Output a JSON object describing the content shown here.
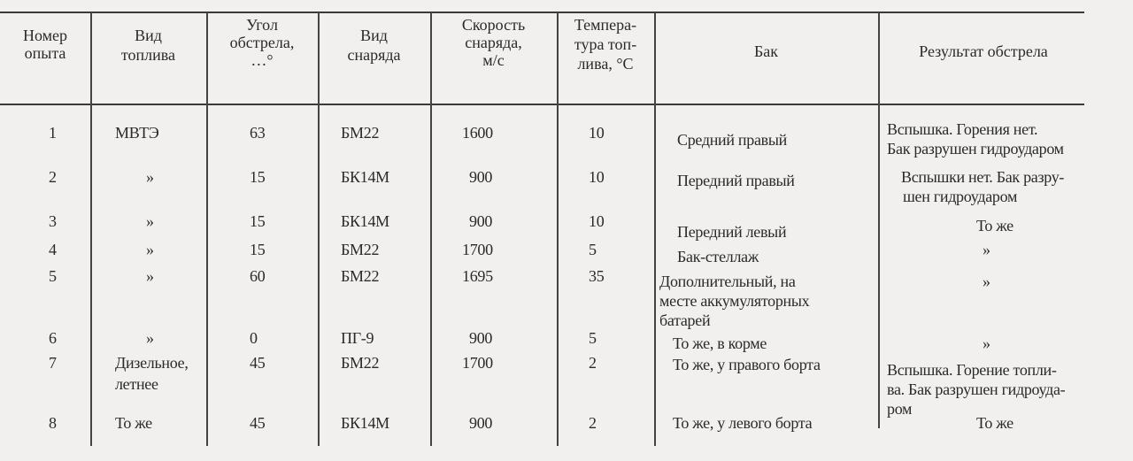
{
  "table": {
    "headers": [
      [
        "Номер",
        "опыта"
      ],
      [
        "Вид",
        "топлива"
      ],
      [
        "Угол",
        "обстрела,",
        "…°"
      ],
      [
        "Вид",
        "снаряда"
      ],
      [
        "Скорость",
        "снаряда,",
        "м/с"
      ],
      [
        "Темпера-",
        "тура топ-",
        "лива, °С"
      ],
      [
        "Бак"
      ],
      [
        "Результат  обстрела"
      ]
    ],
    "rows": [
      {
        "n": "1",
        "fuel": [
          "МВТЭ"
        ],
        "angle": "63",
        "shell": "БМ22",
        "speed": "1600",
        "temp": "10",
        "tank": [
          "Средний правый"
        ],
        "result": [
          "Вспышка.  Горения  нет.",
          "Бак разрушен гидроударом"
        ]
      },
      {
        "n": "2",
        "fuel": [
          "»"
        ],
        "angle": "15",
        "shell": "БК14М",
        "speed": "900",
        "temp": "10",
        "tank": [
          "Передний правый"
        ],
        "result": [
          "Вспышки нет. Бак разру-",
          "шен  гидроударом"
        ]
      },
      {
        "n": "3",
        "fuel": [
          "»"
        ],
        "angle": "15",
        "shell": "БК14М",
        "speed": "900",
        "temp": "10",
        "tank": [
          "Передний левый"
        ],
        "result": [
          "То же"
        ]
      },
      {
        "n": "4",
        "fuel": [
          "»"
        ],
        "angle": "15",
        "shell": "БМ22",
        "speed": "1700",
        "temp": "5",
        "tank": [
          "Бак-стеллаж"
        ],
        "result": [
          "»"
        ]
      },
      {
        "n": "5",
        "fuel": [
          "»"
        ],
        "angle": "60",
        "shell": "БМ22",
        "speed": "1695",
        "temp": "35",
        "tank": [
          "Дополнительный,        на",
          "месте    аккумуляторных",
          "батарей"
        ],
        "result": [
          "»"
        ]
      },
      {
        "n": "6",
        "fuel": [
          "»"
        ],
        "angle": "0",
        "shell": "ПГ-9",
        "speed": "900",
        "temp": "5",
        "tank": [
          "То же,  в корме"
        ],
        "result": [
          "»"
        ]
      },
      {
        "n": "7",
        "fuel": [
          "Дизельное,",
          "летнее"
        ],
        "angle": "45",
        "shell": "БМ22",
        "speed": "1700",
        "temp": "2",
        "tank": [
          "То же, у правого борта"
        ],
        "result": [
          "Вспышка.  Горение  топли-",
          "ва. Бак разрушен гидроуда-",
          "ром"
        ]
      },
      {
        "n": "8",
        "fuel": [
          "То же"
        ],
        "angle": "45",
        "shell": "БК14М",
        "speed": "900",
        "temp": "2",
        "tank": [
          "То же, у левого борта"
        ],
        "result": [
          "То же"
        ]
      }
    ]
  }
}
